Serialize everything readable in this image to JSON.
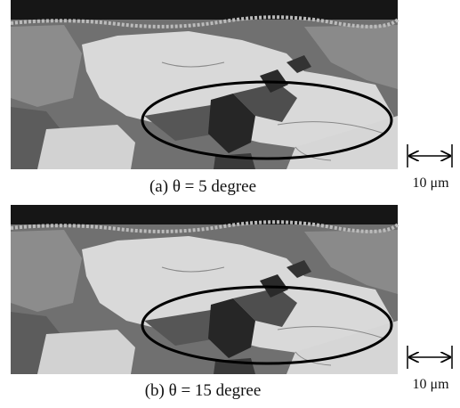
{
  "figure": {
    "panels": [
      {
        "caption": "(a) θ = 5 degree",
        "scale_label": "10 μm"
      },
      {
        "caption": "(b) θ = 15 degree",
        "scale_label": "10 μm"
      }
    ]
  }
}
